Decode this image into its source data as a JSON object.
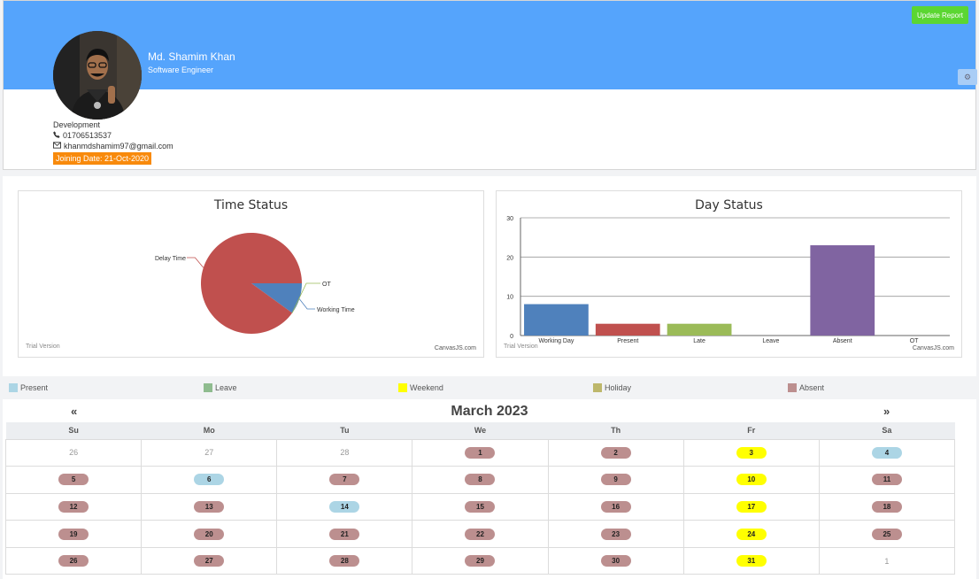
{
  "profile": {
    "name": "Md. Shamim Khan",
    "role": "Software Engineer",
    "department": "Development",
    "phone": "01706513537",
    "email": "khanmdshamim97@gmail.com",
    "joining": "Joining Date: 21-Oct-2020",
    "update_label": "Update Report",
    "banner_color": "#55a4fc"
  },
  "charts": {
    "time_status": {
      "title": "Time Status",
      "watermark": "Trial Version",
      "credit": "CanvasJS.com"
    },
    "day_status": {
      "title": "Day Status",
      "watermark": "Trial Version",
      "credit": "CanvasJS.com"
    }
  },
  "chart_data": [
    {
      "type": "pie",
      "title": "Time Status",
      "labels": [
        "Delay Time",
        "OT",
        "Working Time"
      ],
      "values": [
        90,
        0,
        10
      ],
      "colors": [
        "#c0504e",
        "#9bbb58",
        "#4f81bc"
      ]
    },
    {
      "type": "bar",
      "title": "Day Status",
      "categories": [
        "Working Day",
        "Present",
        "Late",
        "Leave",
        "Absent",
        "OT"
      ],
      "values": [
        8,
        3,
        3,
        0,
        23,
        0
      ],
      "colors": [
        "#4f81bc",
        "#c0504e",
        "#9bbb58",
        "#23bfaa",
        "#8064a1",
        "#4aacc5"
      ],
      "ylim": [
        0,
        30
      ],
      "yticks": [
        0,
        10,
        20,
        30
      ],
      "grid": true
    }
  ],
  "legend": [
    {
      "label": "Present",
      "color": "#acd5e5"
    },
    {
      "label": "Leave",
      "color": "#8fbc8f"
    },
    {
      "label": "Weekend",
      "color": "#ffff00"
    },
    {
      "label": "Holiday",
      "color": "#bdb76b"
    },
    {
      "label": "Absent",
      "color": "#bc8f8f"
    }
  ],
  "calendar": {
    "month": "March 2023",
    "prev": "«",
    "next": "»",
    "weekdays": [
      "Su",
      "Mo",
      "Tu",
      "We",
      "Th",
      "Fr",
      "Sa"
    ],
    "weeks": [
      [
        {
          "d": "26",
          "s": "out"
        },
        {
          "d": "27",
          "s": "out"
        },
        {
          "d": "28",
          "s": "out"
        },
        {
          "d": "1",
          "s": "absent"
        },
        {
          "d": "2",
          "s": "absent"
        },
        {
          "d": "3",
          "s": "weekend"
        },
        {
          "d": "4",
          "s": "present"
        }
      ],
      [
        {
          "d": "5",
          "s": "absent"
        },
        {
          "d": "6",
          "s": "present"
        },
        {
          "d": "7",
          "s": "absent"
        },
        {
          "d": "8",
          "s": "absent"
        },
        {
          "d": "9",
          "s": "absent"
        },
        {
          "d": "10",
          "s": "weekend"
        },
        {
          "d": "11",
          "s": "absent"
        }
      ],
      [
        {
          "d": "12",
          "s": "absent"
        },
        {
          "d": "13",
          "s": "absent"
        },
        {
          "d": "14",
          "s": "present"
        },
        {
          "d": "15",
          "s": "absent"
        },
        {
          "d": "16",
          "s": "absent"
        },
        {
          "d": "17",
          "s": "weekend"
        },
        {
          "d": "18",
          "s": "absent"
        }
      ],
      [
        {
          "d": "19",
          "s": "absent"
        },
        {
          "d": "20",
          "s": "absent"
        },
        {
          "d": "21",
          "s": "absent"
        },
        {
          "d": "22",
          "s": "absent"
        },
        {
          "d": "23",
          "s": "absent"
        },
        {
          "d": "24",
          "s": "weekend"
        },
        {
          "d": "25",
          "s": "absent"
        }
      ],
      [
        {
          "d": "26",
          "s": "absent"
        },
        {
          "d": "27",
          "s": "absent"
        },
        {
          "d": "28",
          "s": "absent"
        },
        {
          "d": "29",
          "s": "absent"
        },
        {
          "d": "30",
          "s": "absent"
        },
        {
          "d": "31",
          "s": "weekend"
        },
        {
          "d": "1",
          "s": "out"
        }
      ]
    ],
    "status_colors": {
      "absent": "#bc8f8f",
      "present": "#acd5e5",
      "weekend": "#ffff00"
    }
  }
}
